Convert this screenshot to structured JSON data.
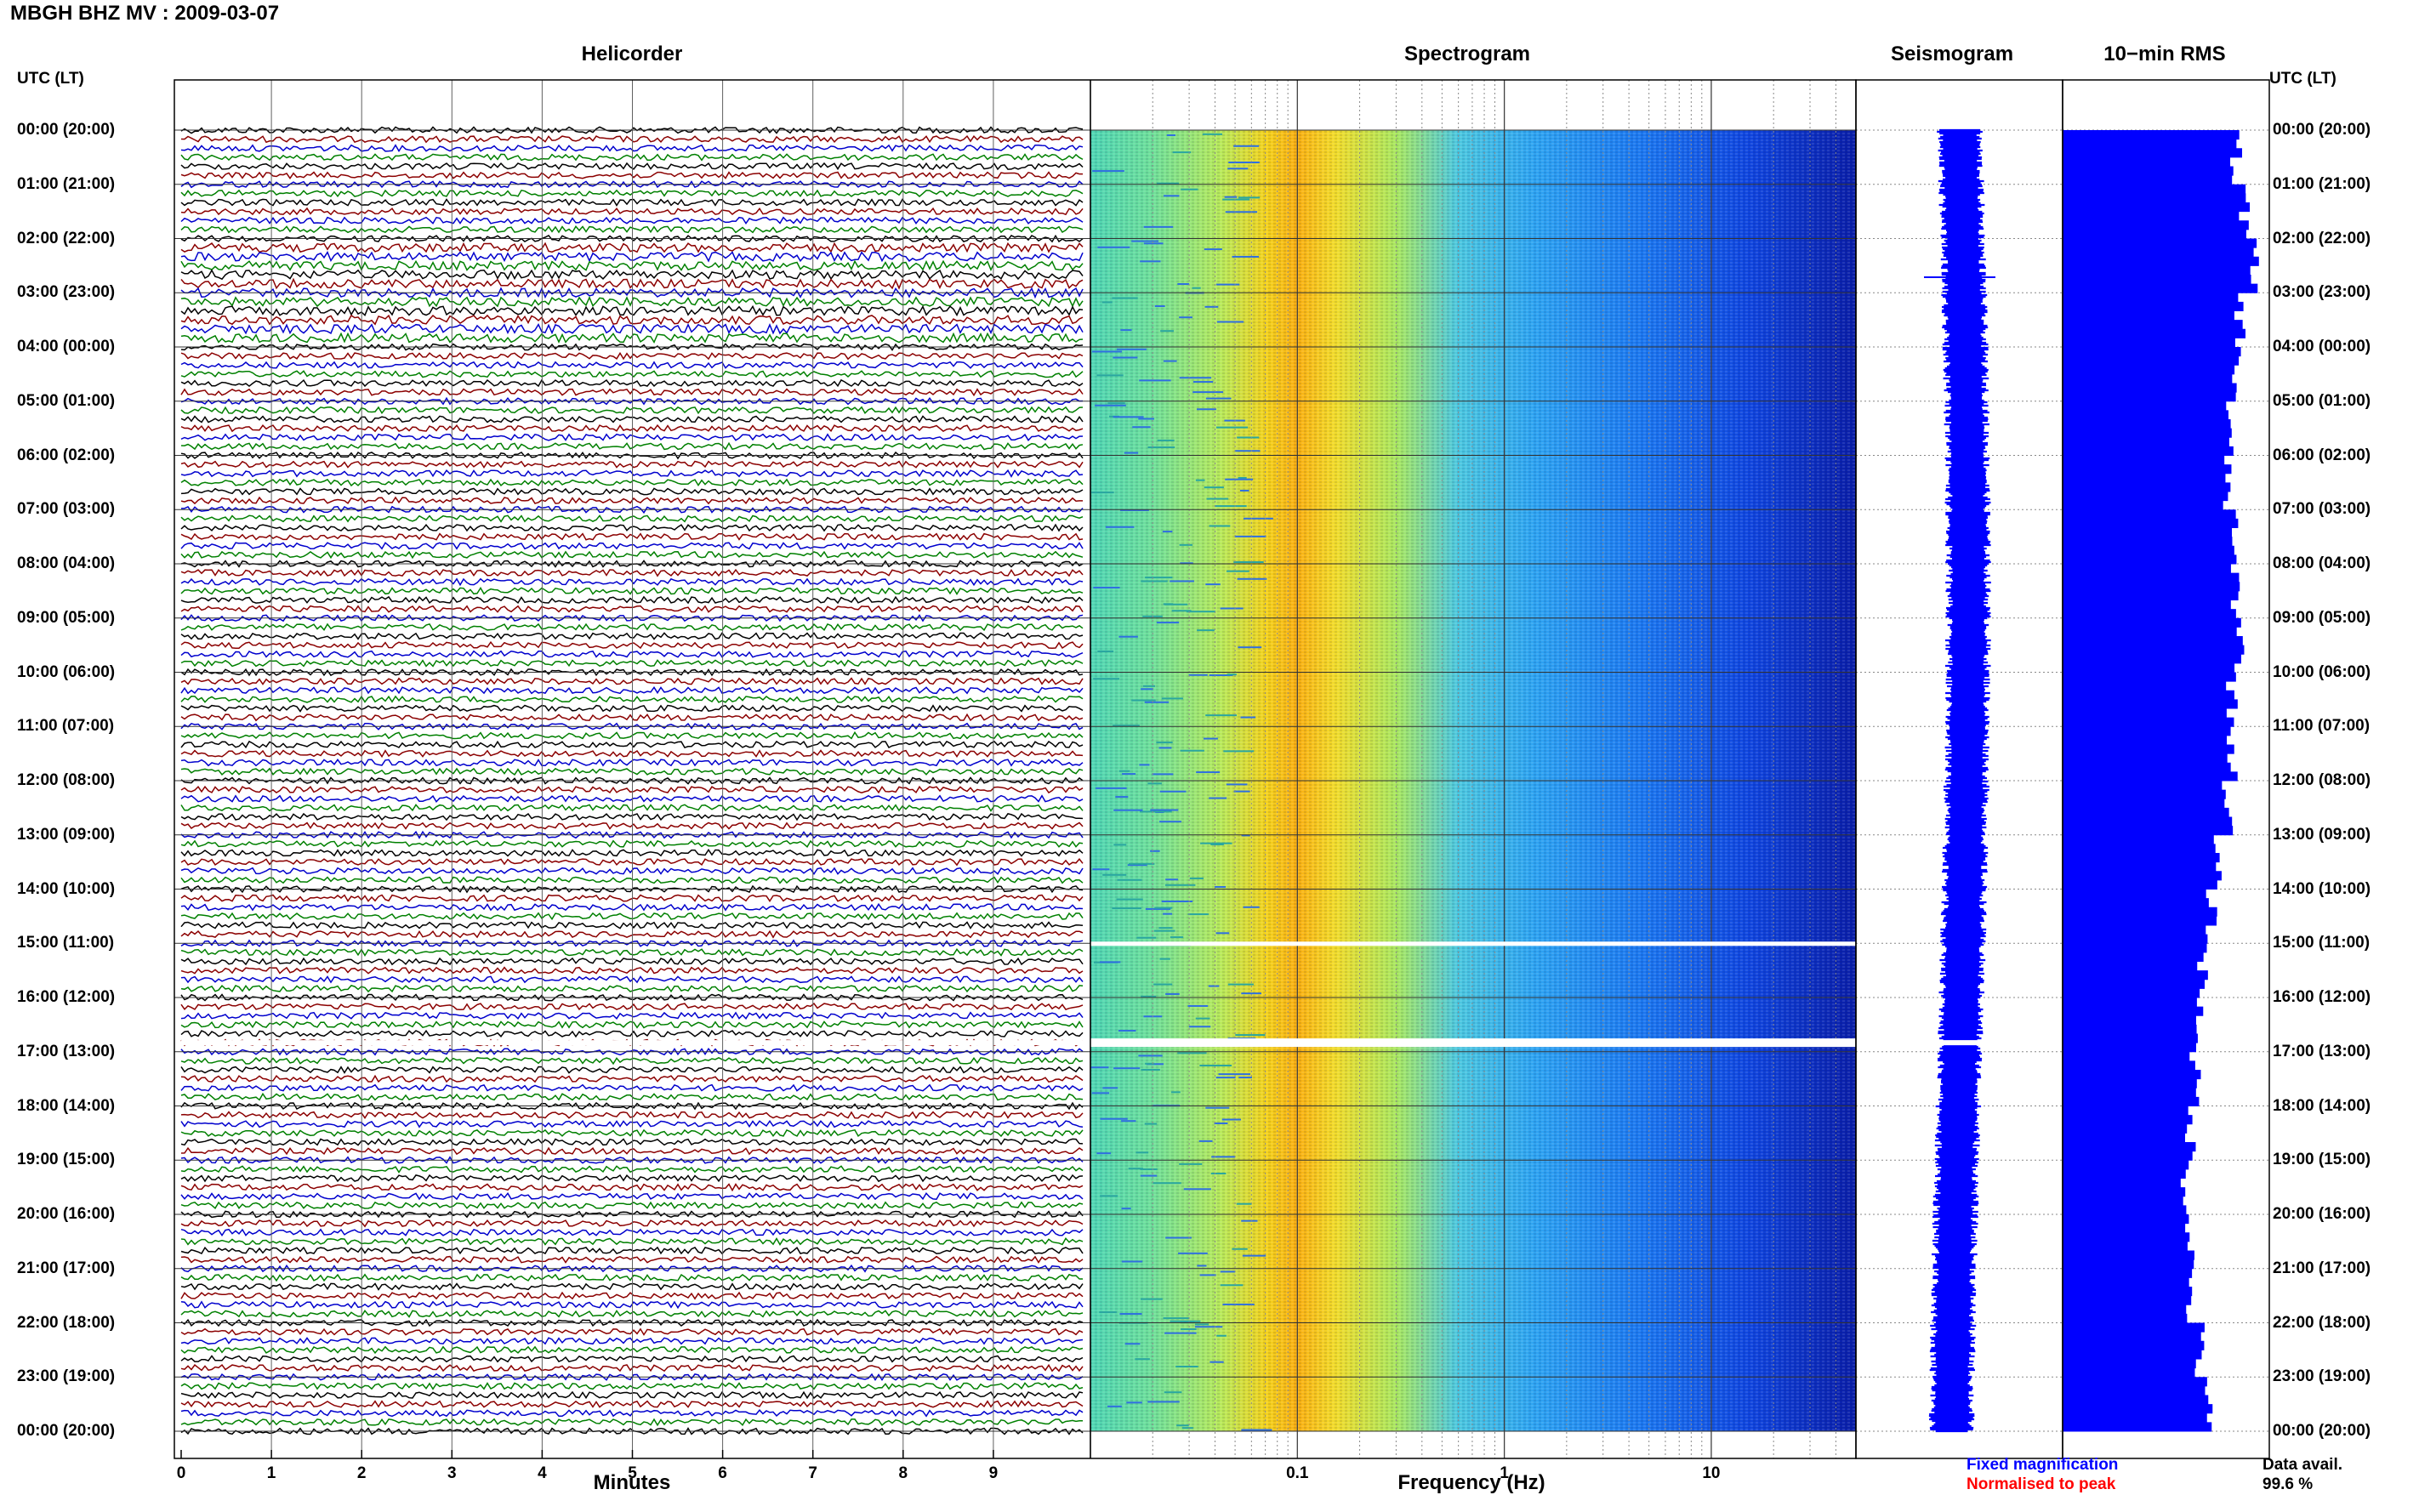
{
  "header": {
    "title": "MBGH BHZ MV : 2009-03-07"
  },
  "panels": {
    "helicorder_title": "Helicorder",
    "spectrogram_title": "Spectrogram",
    "seismogram_title": "Seismogram",
    "rms_title": "10−min RMS"
  },
  "time_axis_label_left": "UTC (LT)",
  "time_axis_label_right": "UTC (LT)",
  "legend": {
    "fixed": "Fixed magnification",
    "normalised": "Normalised to peak",
    "fixed_color": "#0000ff",
    "normalised_color": "#ff0000"
  },
  "data_availability": {
    "label": "Data avail.",
    "value": "99.6 %"
  },
  "colors": {
    "trace_cycle": [
      "#000000",
      "#8b0000",
      "#0000cd",
      "#008000"
    ],
    "seismogram": "#0000ff",
    "rms_bars": "#0000ff"
  },
  "chart_data": [
    {
      "type": "line",
      "name": "helicorder",
      "title": "Helicorder",
      "xlabel": "Minutes",
      "xlim": [
        0,
        10
      ],
      "xticks": [
        "0",
        "1",
        "2",
        "3",
        "4",
        "5",
        "6",
        "7",
        "8",
        "9"
      ],
      "rows_per_day": 144,
      "gaps_utc": [
        "16:50"
      ],
      "time_labels": [
        "00:00 (20:00)",
        "01:00 (21:00)",
        "02:00 (22:00)",
        "03:00 (23:00)",
        "04:00 (00:00)",
        "05:00 (01:00)",
        "06:00 (02:00)",
        "07:00 (03:00)",
        "08:00 (04:00)",
        "09:00 (05:00)",
        "10:00 (06:00)",
        "11:00 (07:00)",
        "12:00 (08:00)",
        "13:00 (09:00)",
        "14:00 (10:00)",
        "15:00 (11:00)",
        "16:00 (12:00)",
        "17:00 (13:00)",
        "18:00 (14:00)",
        "19:00 (15:00)",
        "20:00 (16:00)",
        "21:00 (17:00)",
        "22:00 (18:00)",
        "23:00 (19:00)",
        "00:00 (20:00)"
      ]
    },
    {
      "type": "heatmap",
      "name": "spectrogram",
      "title": "Spectrogram",
      "xlabel": "Frequency (Hz)",
      "xscale": "log",
      "xlim": [
        0.01,
        50
      ],
      "xticks": [
        "0.1",
        "1",
        "10"
      ],
      "dominant_band_hz": [
        0.18,
        0.35
      ],
      "gaps_utc": [
        "15:00",
        "16:50"
      ]
    },
    {
      "type": "line",
      "name": "seismogram",
      "title": "Seismogram",
      "gaps_utc": [
        "16:50"
      ]
    },
    {
      "type": "bar",
      "name": "rms",
      "title": "10−min RMS",
      "orientation": "horizontal",
      "interval_minutes": 10,
      "hourly_relative_levels": [
        0.84,
        0.88,
        0.92,
        0.86,
        0.84,
        0.8,
        0.8,
        0.82,
        0.84,
        0.86,
        0.82,
        0.82,
        0.8,
        0.74,
        0.72,
        0.68,
        0.66,
        0.64,
        0.62,
        0.6,
        0.62,
        0.62,
        0.66,
        0.7
      ]
    }
  ]
}
